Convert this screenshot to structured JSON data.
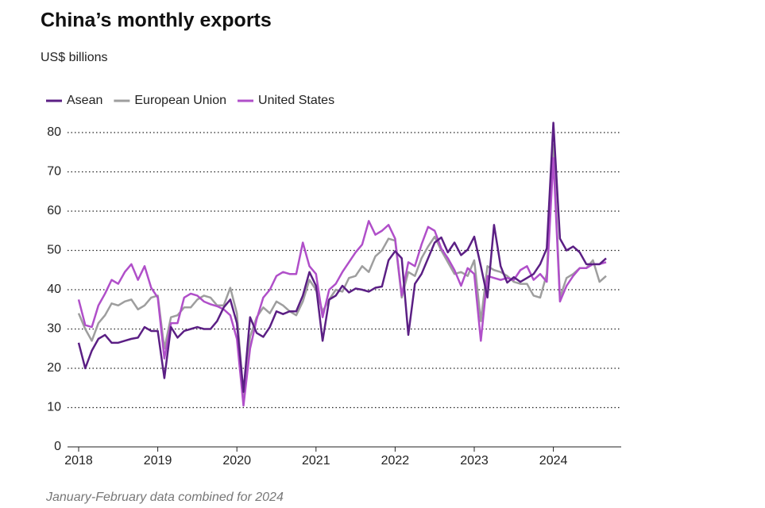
{
  "chart_data": {
    "type": "line",
    "title": "China’s monthly exports",
    "subtitle": "US$ billions",
    "note": "January-February data combined for 2024",
    "categories": [
      "2018",
      null,
      null,
      null,
      null,
      null,
      null,
      null,
      null,
      null,
      null,
      null,
      "2019",
      null,
      null,
      null,
      null,
      null,
      null,
      null,
      null,
      null,
      null,
      null,
      "2020",
      null,
      null,
      null,
      null,
      null,
      null,
      null,
      null,
      null,
      null,
      null,
      "2021",
      null,
      null,
      null,
      null,
      null,
      null,
      null,
      null,
      null,
      null,
      null,
      "2022",
      null,
      null,
      null,
      null,
      null,
      null,
      null,
      null,
      null,
      null,
      null,
      "2023",
      null,
      null,
      null,
      null,
      null,
      null,
      null,
      null,
      null,
      null,
      null,
      "2024",
      null,
      null,
      null,
      null,
      null,
      null,
      null,
      null
    ],
    "series": [
      {
        "name": "Asean",
        "color": "#5b1f84",
        "values": [
          26.5,
          20,
          24.5,
          27.5,
          28.5,
          26.5,
          26.5,
          27,
          27.5,
          27.8,
          30.5,
          29.5,
          29.5,
          17.5,
          30.5,
          27.8,
          29.5,
          30,
          30.5,
          30,
          30,
          32,
          35.5,
          37.5,
          31.5,
          14,
          33,
          29,
          28,
          30.5,
          34.5,
          33.8,
          34.5,
          34.5,
          38.5,
          44.5,
          41,
          27,
          37.5,
          38.5,
          41,
          39.3,
          40.3,
          40,
          39.5,
          40.5,
          40.8,
          47.5,
          49.8,
          48,
          28.5,
          41.5,
          44,
          48,
          52,
          53.3,
          49.5,
          52,
          48.8,
          50.2,
          53.5,
          46,
          38,
          56.5,
          46,
          41.8,
          43.2,
          42,
          43,
          44,
          46.5,
          50.5,
          82.5,
          53,
          50,
          51,
          49.5,
          46.5,
          46.5,
          46.5,
          48
        ]
      },
      {
        "name": "European Union",
        "color": "#9e9e9e",
        "values": [
          34,
          30,
          27,
          31.5,
          33.5,
          36.5,
          36,
          37,
          37.5,
          35,
          36,
          38,
          38.5,
          25,
          33,
          33.5,
          35.5,
          35.5,
          37.5,
          38.5,
          38,
          36,
          36,
          40.5,
          34,
          13,
          28,
          33,
          35.5,
          34,
          37,
          36,
          34.5,
          33.5,
          37,
          42.5,
          40,
          34.5,
          37.5,
          40,
          39.5,
          43,
          43.5,
          46,
          44.5,
          48.5,
          50,
          53,
          52.5,
          38,
          44.5,
          43.5,
          48,
          51,
          53.5,
          50,
          47,
          44,
          44.5,
          43.5,
          47.5,
          32,
          46,
          45,
          44.5,
          43.5,
          42,
          41.5,
          41.5,
          38.5,
          38,
          44,
          77,
          38,
          43,
          44,
          45.5,
          45.5,
          47.5,
          42,
          43.5
        ]
      },
      {
        "name": "United States",
        "color": "#b04fc9",
        "values": [
          37.5,
          31,
          30.5,
          36,
          39,
          42.5,
          41.5,
          44.5,
          46.5,
          42.5,
          46,
          40.5,
          38,
          22.5,
          31.5,
          31.5,
          38,
          39,
          38.5,
          37,
          36.3,
          35.8,
          35,
          33.5,
          27.5,
          10.5,
          25,
          32.5,
          38,
          40,
          43.5,
          44.5,
          44,
          44,
          52,
          46,
          44,
          33,
          40,
          41.5,
          44.5,
          47,
          49.5,
          51.5,
          57.5,
          54,
          55,
          56.5,
          53,
          38.5,
          47,
          46,
          51.5,
          56,
          55,
          50.5,
          48,
          45,
          41,
          45.5,
          44,
          27,
          43.5,
          43,
          42.5,
          43,
          42.5,
          45,
          46,
          42.5,
          44,
          42,
          73.5,
          37,
          41,
          43.5,
          45.5,
          45.5,
          46.5,
          46.5,
          47
        ]
      }
    ],
    "ylim": [
      0,
      80
    ],
    "yticks": [
      0,
      10,
      20,
      30,
      40,
      50,
      60,
      70,
      80
    ],
    "grid": true,
    "legend": "top-left"
  }
}
